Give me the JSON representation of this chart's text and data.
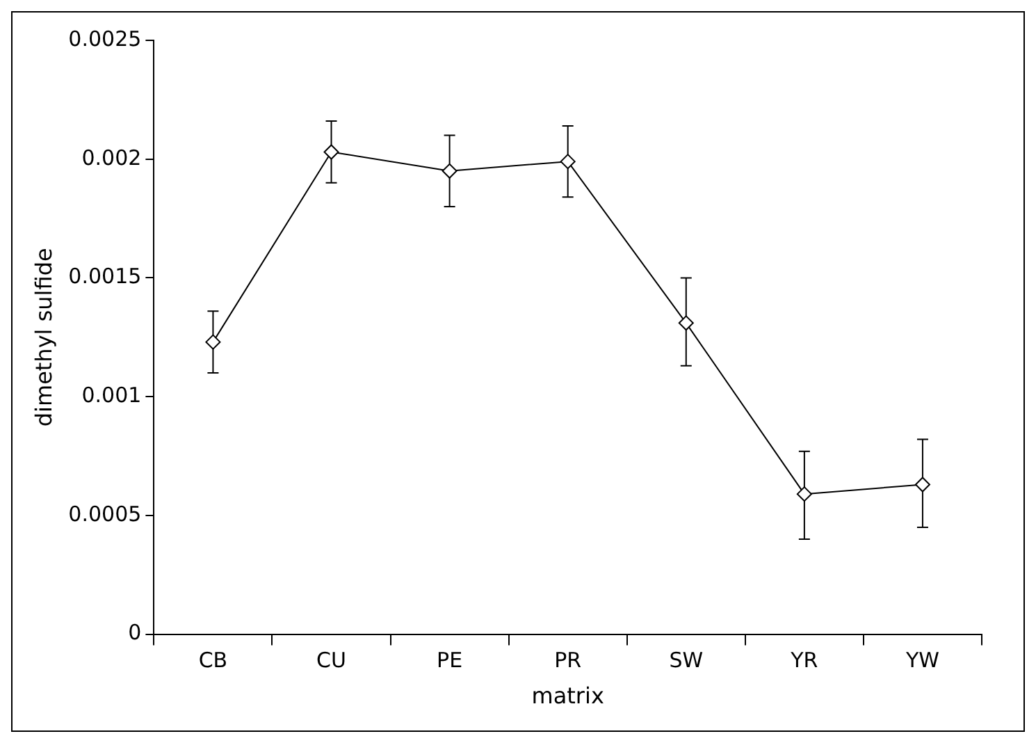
{
  "chart_data": {
    "type": "line",
    "xlabel": "matrix",
    "ylabel": "dimethyl sulfide",
    "categories": [
      "CB",
      "CU",
      "PE",
      "PR",
      "SW",
      "YR",
      "YW"
    ],
    "series": [
      {
        "color": "#000000",
        "values": [
          0.00123,
          0.00203,
          0.00195,
          0.00199,
          0.00131,
          0.00059,
          0.00063
        ],
        "errors": [
          [
            0.0011,
            0.00136
          ],
          [
            0.0019,
            0.00216
          ],
          [
            0.0018,
            0.0021
          ],
          [
            0.00184,
            0.00214
          ],
          [
            0.00113,
            0.0015
          ],
          [
            0.0004,
            0.00077
          ],
          [
            0.00045,
            0.00082
          ]
        ]
      }
    ],
    "ylim": [
      0,
      0.0025
    ],
    "yticks": [
      0,
      0.0005,
      0.001,
      0.0015,
      0.002,
      0.0025
    ],
    "marker": "diamond",
    "line_style": "solid",
    "grid": false,
    "legend": false
  }
}
